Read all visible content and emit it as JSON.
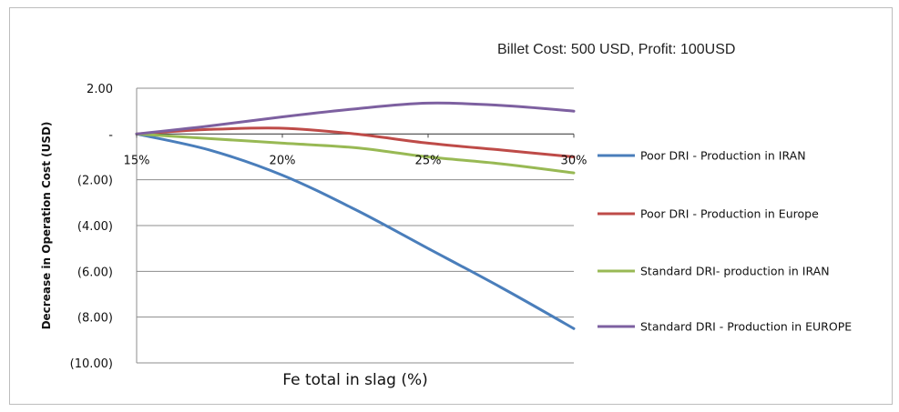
{
  "chart_data": {
    "type": "line",
    "subtitle": "Billet Cost: 500 USD, Profit: 100USD",
    "xlabel": "Fe total in slag (%)",
    "ylabel": "Decrease in Operation Cost (USD)",
    "x": [
      "15%",
      "20%",
      "25%",
      "30%"
    ],
    "x_values": [
      15,
      17.5,
      20,
      22.5,
      25,
      27.5,
      30
    ],
    "ylim": [
      -10,
      2
    ],
    "yticks": [
      2,
      0,
      -2,
      -4,
      -6,
      -8,
      -10
    ],
    "ytick_labels": [
      "2.00",
      "-",
      "(2.00)",
      "(4.00)",
      "(6.00)",
      "(8.00)",
      "(10.00)"
    ],
    "grid": true,
    "legend_position": "right",
    "series": [
      {
        "name": "Poor DRI - Production in IRAN",
        "color": "#4a7ebb",
        "values": [
          0,
          -0.7,
          -1.8,
          -3.3,
          -5.0,
          -6.7,
          -8.5
        ]
      },
      {
        "name": "Poor DRI - Production in Europe",
        "color": "#be4b48",
        "values": [
          0,
          0.2,
          0.25,
          0,
          -0.4,
          -0.7,
          -1.0
        ]
      },
      {
        "name": "Standard DRI- production in IRAN",
        "color": "#98b954",
        "values": [
          0,
          -0.2,
          -0.4,
          -0.6,
          -1.0,
          -1.3,
          -1.7
        ]
      },
      {
        "name": "Standard DRI - Production in EUROPE",
        "color": "#7d60a0",
        "values": [
          0,
          0.35,
          0.75,
          1.1,
          1.35,
          1.25,
          1.0
        ]
      }
    ]
  }
}
